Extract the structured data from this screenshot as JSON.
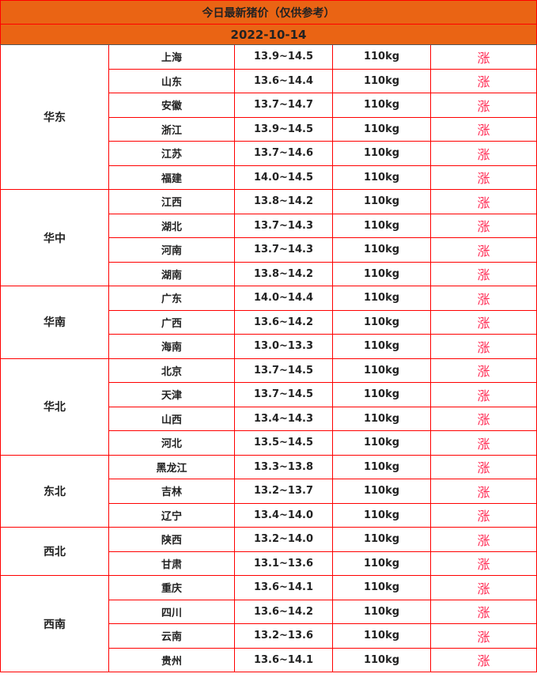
{
  "title": "今日最新猪价（仅供参考）",
  "date": "2022-10-14",
  "colors": {
    "header_bg": "#ea6414",
    "border": "#ff0000",
    "trend": "#ff2d55"
  },
  "regions": [
    {
      "name": "华东",
      "rows": [
        {
          "province": "上海",
          "price": "13.9~14.5",
          "weight": "110kg",
          "trend": "涨"
        },
        {
          "province": "山东",
          "price": "13.6~14.4",
          "weight": "110kg",
          "trend": "涨"
        },
        {
          "province": "安徽",
          "price": "13.7~14.7",
          "weight": "110kg",
          "trend": "涨"
        },
        {
          "province": "浙江",
          "price": "13.9~14.5",
          "weight": "110kg",
          "trend": "涨"
        },
        {
          "province": "江苏",
          "price": "13.7~14.6",
          "weight": "110kg",
          "trend": "涨"
        },
        {
          "province": "福建",
          "price": "14.0~14.5",
          "weight": "110kg",
          "trend": "涨"
        }
      ]
    },
    {
      "name": "华中",
      "rows": [
        {
          "province": "江西",
          "price": "13.8~14.2",
          "weight": "110kg",
          "trend": "涨"
        },
        {
          "province": "湖北",
          "price": "13.7~14.3",
          "weight": "110kg",
          "trend": "涨"
        },
        {
          "province": "河南",
          "price": "13.7~14.3",
          "weight": "110kg",
          "trend": "涨"
        },
        {
          "province": "湖南",
          "price": "13.8~14.2",
          "weight": "110kg",
          "trend": "涨"
        }
      ]
    },
    {
      "name": "华南",
      "rows": [
        {
          "province": "广东",
          "price": "14.0~14.4",
          "weight": "110kg",
          "trend": "涨"
        },
        {
          "province": "广西",
          "price": "13.6~14.2",
          "weight": "110kg",
          "trend": "涨"
        },
        {
          "province": "海南",
          "price": "13.0~13.3",
          "weight": "110kg",
          "trend": "涨"
        }
      ]
    },
    {
      "name": "华北",
      "rows": [
        {
          "province": "北京",
          "price": "13.7~14.5",
          "weight": "110kg",
          "trend": "涨"
        },
        {
          "province": "天津",
          "price": "13.7~14.5",
          "weight": "110kg",
          "trend": "涨"
        },
        {
          "province": "山西",
          "price": "13.4~14.3",
          "weight": "110kg",
          "trend": "涨"
        },
        {
          "province": "河北",
          "price": "13.5~14.5",
          "weight": "110kg",
          "trend": "涨"
        }
      ]
    },
    {
      "name": "东北",
      "rows": [
        {
          "province": "黑龙江",
          "price": "13.3~13.8",
          "weight": "110kg",
          "trend": "涨"
        },
        {
          "province": "吉林",
          "price": "13.2~13.7",
          "weight": "110kg",
          "trend": "涨"
        },
        {
          "province": "辽宁",
          "price": "13.4~14.0",
          "weight": "110kg",
          "trend": "涨"
        }
      ]
    },
    {
      "name": "西北",
      "rows": [
        {
          "province": "陕西",
          "price": "13.2~14.0",
          "weight": "110kg",
          "trend": "涨"
        },
        {
          "province": "甘肃",
          "price": "13.1~13.6",
          "weight": "110kg",
          "trend": "涨"
        }
      ]
    },
    {
      "name": "西南",
      "rows": [
        {
          "province": "重庆",
          "price": "13.6~14.1",
          "weight": "110kg",
          "trend": "涨"
        },
        {
          "province": "四川",
          "price": "13.6~14.2",
          "weight": "110kg",
          "trend": "涨"
        },
        {
          "province": "云南",
          "price": "13.2~13.6",
          "weight": "110kg",
          "trend": "涨"
        },
        {
          "province": "贵州",
          "price": "13.6~14.1",
          "weight": "110kg",
          "trend": "涨"
        }
      ]
    }
  ]
}
